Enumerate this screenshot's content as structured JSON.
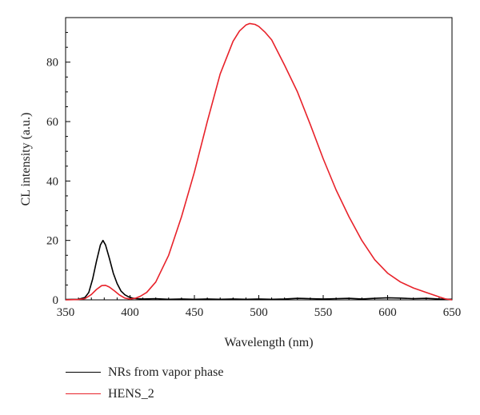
{
  "chart_data": {
    "type": "line",
    "xlabel": "Wavelength (nm)",
    "ylabel": "CL intensity (a.u.)",
    "xlim": [
      350,
      650
    ],
    "ylim": [
      0,
      95
    ],
    "xticks": [
      350,
      400,
      450,
      500,
      550,
      600,
      650
    ],
    "yticks": [
      0,
      20,
      40,
      60,
      80
    ],
    "x_minor_step": 10,
    "y_minor_step": 5,
    "grid": false,
    "legend_position": "below",
    "series": [
      {
        "name": "NRs from vapor phase",
        "color": "#000000",
        "x": [
          350,
          360,
          365,
          368,
          371,
          374,
          377,
          379,
          381,
          384,
          387,
          390,
          393,
          396,
          399,
          402,
          405,
          410,
          420,
          430,
          440,
          450,
          460,
          470,
          480,
          490,
          500,
          510,
          520,
          530,
          540,
          550,
          560,
          570,
          580,
          590,
          600,
          610,
          620,
          630,
          640,
          650
        ],
        "y": [
          0.1,
          0.2,
          0.8,
          2.5,
          7,
          13,
          18.5,
          20,
          18.5,
          14,
          9,
          5.5,
          3,
          1.7,
          1,
          0.6,
          0.4,
          0.3,
          0.4,
          0.2,
          0.3,
          0.2,
          0.3,
          0.2,
          0.3,
          0.2,
          0.3,
          0.2,
          0.3,
          0.5,
          0.4,
          0.3,
          0.4,
          0.5,
          0.3,
          0.5,
          0.7,
          0.6,
          0.4,
          0.5,
          0.3,
          0.2
        ]
      },
      {
        "name": "HENS_2",
        "color": "#e8222a",
        "x": [
          350,
          360,
          365,
          370,
          374,
          378,
          381,
          384,
          388,
          392,
          396,
          400,
          404,
          408,
          413,
          420,
          430,
          440,
          450,
          460,
          470,
          480,
          485,
          490,
          493,
          497,
          500,
          505,
          510,
          520,
          530,
          540,
          550,
          560,
          570,
          580,
          590,
          600,
          610,
          620,
          630,
          640,
          645,
          650
        ],
        "y": [
          0,
          0.1,
          0.4,
          1.8,
          3.5,
          4.8,
          4.9,
          4.3,
          3,
          1.6,
          0.6,
          0.3,
          0.5,
          1.2,
          2.5,
          6,
          15,
          28,
          43,
          60,
          76,
          87,
          90.5,
          92.5,
          93,
          92.7,
          92,
          90,
          87.5,
          79,
          70,
          59,
          47.5,
          37,
          28,
          20,
          13.5,
          9,
          6,
          4,
          2.5,
          1,
          0.3,
          0
        ]
      }
    ]
  }
}
